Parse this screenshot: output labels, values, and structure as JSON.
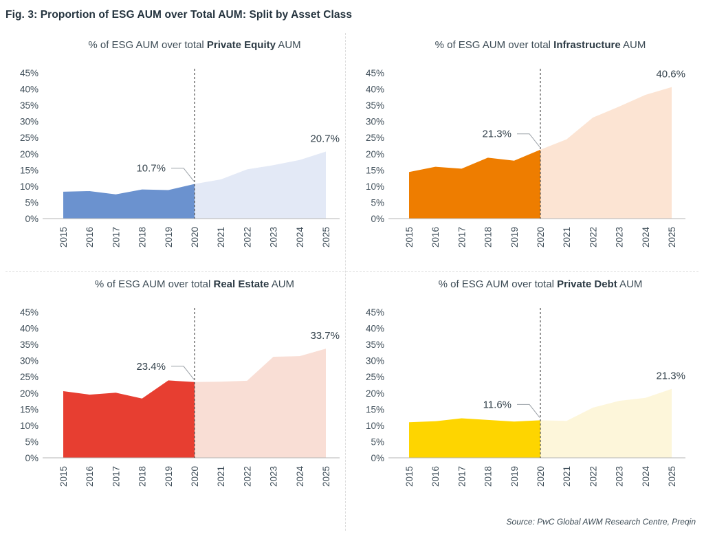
{
  "figure": {
    "title": "Fig. 3: Proportion of ESG AUM over Total AUM: Split by Asset Class",
    "source": "Source: PwC Global AWM Research Centre, Preqin"
  },
  "axis": {
    "ylim": [
      0,
      45
    ],
    "y_ticks": [
      {
        "value": 45,
        "label": "45%"
      },
      {
        "value": 40,
        "label": "40%"
      },
      {
        "value": 35,
        "label": "35%"
      },
      {
        "value": 30,
        "label": "30%"
      },
      {
        "value": 25,
        "label": "25%"
      },
      {
        "value": 20,
        "label": "20%"
      },
      {
        "value": 15,
        "label": "15%"
      },
      {
        "value": 10,
        "label": "10%"
      },
      {
        "value": 5,
        "label": "5%"
      },
      {
        "value": 0,
        "label": "0%"
      }
    ]
  },
  "chart_data": [
    {
      "type": "area",
      "title_prefix": "% of ESG AUM over total ",
      "asset": "Private Equity",
      "title_suffix": " AUM",
      "x": [
        2015,
        2016,
        2017,
        2018,
        2019,
        2020,
        2021,
        2022,
        2023,
        2024,
        2025
      ],
      "values": [
        8.3,
        8.5,
        7.5,
        9.0,
        8.8,
        10.7,
        12.1,
        15.2,
        16.5,
        18.1,
        20.7
      ],
      "split_year": 2020,
      "series": [
        {
          "name": "actual 2015-2020",
          "values": [
            8.3,
            8.5,
            7.5,
            9.0,
            8.8,
            10.7
          ]
        },
        {
          "name": "forecast 2020-2025",
          "values": [
            10.7,
            12.1,
            15.2,
            16.5,
            18.1,
            20.7
          ]
        }
      ],
      "labels": {
        "split": "10.7%",
        "end": "20.7%"
      },
      "colors": {
        "actual": "#6b92cf",
        "forecast": "#e3e9f6"
      },
      "ylim": [
        0,
        45
      ]
    },
    {
      "type": "area",
      "title_prefix": "% of ESG AUM over total ",
      "asset": "Infrastructure",
      "title_suffix": " AUM",
      "x": [
        2015,
        2016,
        2017,
        2018,
        2019,
        2020,
        2021,
        2022,
        2023,
        2024,
        2025
      ],
      "values": [
        14.4,
        16.0,
        15.4,
        18.8,
        17.9,
        21.3,
        24.5,
        31.2,
        34.6,
        38.2,
        40.6
      ],
      "split_year": 2020,
      "series": [
        {
          "name": "actual 2015-2020",
          "values": [
            14.4,
            16.0,
            15.4,
            18.8,
            17.9,
            21.3
          ]
        },
        {
          "name": "forecast 2020-2025",
          "values": [
            21.3,
            24.5,
            31.2,
            34.6,
            38.2,
            40.6
          ]
        }
      ],
      "labels": {
        "split": "21.3%",
        "end": "40.6%"
      },
      "colors": {
        "actual": "#ee7d00",
        "forecast": "#fce4d3"
      },
      "ylim": [
        0,
        45
      ]
    },
    {
      "type": "area",
      "title_prefix": "% of ESG AUM over total ",
      "asset": "Real Estate",
      "title_suffix": " AUM",
      "x": [
        2015,
        2016,
        2017,
        2018,
        2019,
        2020,
        2021,
        2022,
        2023,
        2024,
        2025
      ],
      "values": [
        20.6,
        19.5,
        20.1,
        18.3,
        23.9,
        23.4,
        23.5,
        23.8,
        31.2,
        31.4,
        33.7
      ],
      "split_year": 2020,
      "series": [
        {
          "name": "actual 2015-2020",
          "values": [
            20.6,
            19.5,
            20.1,
            18.3,
            23.9,
            23.4
          ]
        },
        {
          "name": "forecast 2020-2025",
          "values": [
            23.4,
            23.5,
            23.8,
            31.2,
            31.4,
            33.7
          ]
        }
      ],
      "labels": {
        "split": "23.4%",
        "end": "33.7%"
      },
      "colors": {
        "actual": "#e73e31",
        "forecast": "#f9ded5"
      },
      "ylim": [
        0,
        45
      ]
    },
    {
      "type": "area",
      "title_prefix": "% of ESG AUM over total ",
      "asset": "Private Debt",
      "title_suffix": " AUM",
      "x": [
        2015,
        2016,
        2017,
        2018,
        2019,
        2020,
        2021,
        2022,
        2023,
        2024,
        2025
      ],
      "values": [
        11.0,
        11.3,
        12.2,
        11.7,
        11.2,
        11.6,
        11.4,
        15.5,
        17.6,
        18.5,
        21.3
      ],
      "split_year": 2020,
      "series": [
        {
          "name": "actual 2015-2020",
          "values": [
            11.0,
            11.3,
            12.2,
            11.7,
            11.2,
            11.6
          ]
        },
        {
          "name": "forecast 2020-2025",
          "values": [
            11.6,
            11.4,
            15.5,
            17.6,
            18.5,
            21.3
          ]
        }
      ],
      "labels": {
        "split": "11.6%",
        "end": "21.3%"
      },
      "colors": {
        "actual": "#fed500",
        "forecast": "#fdf6da"
      },
      "ylim": [
        0,
        45
      ]
    }
  ]
}
